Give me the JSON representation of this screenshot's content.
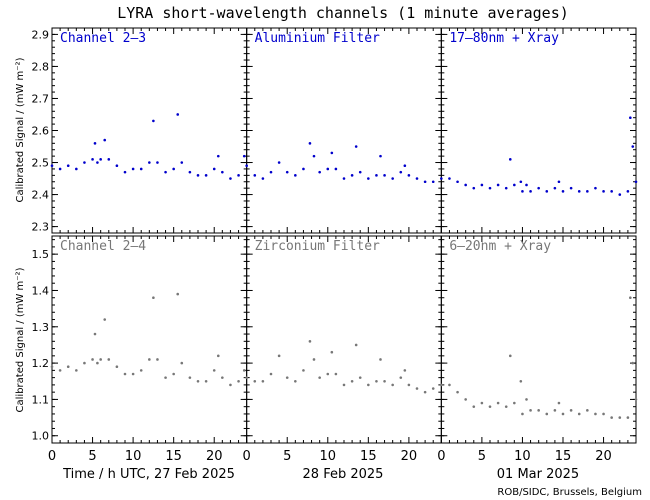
{
  "title": "LYRA short-wavelength channels (1 minute averages)",
  "credit": "ROB/SIDC, Brussels, Belgium",
  "ylabel": "Calibrated Signal / (mW m⁻²)",
  "x_tick_labels": [
    "0",
    "5",
    "10",
    "15",
    "20"
  ],
  "day_labels": [
    "Time / h UTC, 27 Feb 2025",
    "28 Feb 2025",
    "01 Mar 2025"
  ],
  "colors": {
    "top": "#0000cc",
    "bottom": "#777777",
    "axes": "#000000"
  },
  "chart_data": [
    {
      "type": "scatter",
      "row": "top",
      "ylim": [
        2.28,
        2.92
      ],
      "yticks": [
        "2.3",
        "2.4",
        "2.5",
        "2.6",
        "2.7",
        "2.8",
        "2.9"
      ],
      "xlim_hours": [
        0,
        72
      ],
      "panels": [
        "Channel 2–3",
        "Aluminium Filter",
        "17–80nm + Xray"
      ],
      "series": [
        {
          "points": [
            [
              0,
              2.49
            ],
            [
              1,
              2.48
            ],
            [
              2,
              2.49
            ],
            [
              3,
              2.48
            ],
            [
              4,
              2.5
            ],
            [
              5,
              2.51
            ],
            [
              5.3,
              2.56
            ],
            [
              5.6,
              2.5
            ],
            [
              6,
              2.51
            ],
            [
              6.5,
              2.57
            ],
            [
              7,
              2.51
            ],
            [
              8,
              2.49
            ],
            [
              9,
              2.47
            ],
            [
              10,
              2.48
            ],
            [
              11,
              2.48
            ],
            [
              12,
              2.5
            ],
            [
              12.5,
              2.63
            ],
            [
              13,
              2.5
            ],
            [
              14,
              2.47
            ],
            [
              15,
              2.48
            ],
            [
              15.5,
              2.65
            ],
            [
              16,
              2.5
            ],
            [
              17,
              2.47
            ],
            [
              18,
              2.46
            ],
            [
              19,
              2.46
            ],
            [
              20,
              2.48
            ],
            [
              20.5,
              2.52
            ],
            [
              21,
              2.47
            ],
            [
              22,
              2.45
            ],
            [
              23,
              2.46
            ],
            [
              23.7,
              2.52
            ],
            [
              24,
              2.49
            ],
            [
              25,
              2.46
            ],
            [
              26,
              2.45
            ],
            [
              27,
              2.47
            ],
            [
              28,
              2.5
            ],
            [
              29,
              2.47
            ],
            [
              30,
              2.46
            ],
            [
              31,
              2.48
            ],
            [
              31.8,
              2.56
            ],
            [
              32.3,
              2.52
            ],
            [
              33,
              2.47
            ],
            [
              34,
              2.48
            ],
            [
              34.5,
              2.53
            ],
            [
              35,
              2.48
            ],
            [
              36,
              2.45
            ],
            [
              37,
              2.46
            ],
            [
              37.5,
              2.55
            ],
            [
              38,
              2.47
            ],
            [
              39,
              2.45
            ],
            [
              40,
              2.46
            ],
            [
              40.5,
              2.52
            ],
            [
              41,
              2.46
            ],
            [
              42,
              2.45
            ],
            [
              43,
              2.47
            ],
            [
              43.5,
              2.49
            ],
            [
              44,
              2.46
            ],
            [
              45,
              2.45
            ],
            [
              46,
              2.44
            ],
            [
              47,
              2.44
            ],
            [
              48,
              2.45
            ],
            [
              49,
              2.45
            ],
            [
              50,
              2.44
            ],
            [
              51,
              2.43
            ],
            [
              52,
              2.42
            ],
            [
              53,
              2.43
            ],
            [
              54,
              2.42
            ],
            [
              55,
              2.43
            ],
            [
              56,
              2.42
            ],
            [
              56.5,
              2.51
            ],
            [
              57,
              2.43
            ],
            [
              57.8,
              2.44
            ],
            [
              58,
              2.41
            ],
            [
              58.5,
              2.43
            ],
            [
              59,
              2.41
            ],
            [
              60,
              2.42
            ],
            [
              61,
              2.41
            ],
            [
              62,
              2.42
            ],
            [
              62.5,
              2.44
            ],
            [
              63,
              2.41
            ],
            [
              64,
              2.42
            ],
            [
              65,
              2.41
            ],
            [
              66,
              2.41
            ],
            [
              67,
              2.42
            ],
            [
              68,
              2.41
            ],
            [
              69,
              2.41
            ],
            [
              70,
              2.4
            ],
            [
              71,
              2.41
            ],
            [
              71.3,
              2.64
            ],
            [
              71.6,
              2.55
            ],
            [
              72,
              2.44
            ]
          ]
        }
      ]
    },
    {
      "type": "scatter",
      "row": "bottom",
      "ylim": [
        0.98,
        1.55
      ],
      "yticks": [
        "1.0",
        "1.1",
        "1.2",
        "1.3",
        "1.4",
        "1.5"
      ],
      "xlim_hours": [
        0,
        72
      ],
      "panels": [
        "Channel 2–4",
        "Zirconium Filter",
        "6–20nm + Xray"
      ],
      "series": [
        {
          "points": [
            [
              0,
              1.19
            ],
            [
              1,
              1.18
            ],
            [
              2,
              1.19
            ],
            [
              3,
              1.18
            ],
            [
              4,
              1.2
            ],
            [
              5,
              1.21
            ],
            [
              5.3,
              1.28
            ],
            [
              5.6,
              1.2
            ],
            [
              6,
              1.21
            ],
            [
              6.5,
              1.32
            ],
            [
              7,
              1.21
            ],
            [
              8,
              1.19
            ],
            [
              9,
              1.17
            ],
            [
              10,
              1.17
            ],
            [
              11,
              1.18
            ],
            [
              12,
              1.21
            ],
            [
              12.5,
              1.38
            ],
            [
              13,
              1.21
            ],
            [
              14,
              1.16
            ],
            [
              15,
              1.17
            ],
            [
              15.5,
              1.39
            ],
            [
              16,
              1.2
            ],
            [
              17,
              1.16
            ],
            [
              18,
              1.15
            ],
            [
              19,
              1.15
            ],
            [
              20,
              1.18
            ],
            [
              20.5,
              1.22
            ],
            [
              21,
              1.16
            ],
            [
              22,
              1.14
            ],
            [
              23,
              1.15
            ],
            [
              23.7,
              1.18
            ],
            [
              24,
              1.16
            ],
            [
              25,
              1.15
            ],
            [
              26,
              1.15
            ],
            [
              27,
              1.17
            ],
            [
              28,
              1.22
            ],
            [
              29,
              1.16
            ],
            [
              30,
              1.15
            ],
            [
              31,
              1.18
            ],
            [
              31.8,
              1.26
            ],
            [
              32.3,
              1.21
            ],
            [
              33,
              1.16
            ],
            [
              34,
              1.17
            ],
            [
              34.5,
              1.23
            ],
            [
              35,
              1.17
            ],
            [
              36,
              1.14
            ],
            [
              37,
              1.15
            ],
            [
              37.5,
              1.25
            ],
            [
              38,
              1.16
            ],
            [
              39,
              1.14
            ],
            [
              40,
              1.15
            ],
            [
              40.5,
              1.21
            ],
            [
              41,
              1.15
            ],
            [
              42,
              1.14
            ],
            [
              43,
              1.16
            ],
            [
              43.5,
              1.18
            ],
            [
              44,
              1.14
            ],
            [
              45,
              1.13
            ],
            [
              46,
              1.12
            ],
            [
              47,
              1.13
            ],
            [
              48,
              1.14
            ],
            [
              49,
              1.14
            ],
            [
              50,
              1.12
            ],
            [
              51,
              1.1
            ],
            [
              52,
              1.08
            ],
            [
              53,
              1.09
            ],
            [
              54,
              1.08
            ],
            [
              55,
              1.09
            ],
            [
              56,
              1.08
            ],
            [
              56.5,
              1.22
            ],
            [
              57,
              1.09
            ],
            [
              57.8,
              1.15
            ],
            [
              58,
              1.06
            ],
            [
              58.5,
              1.1
            ],
            [
              59,
              1.07
            ],
            [
              60,
              1.07
            ],
            [
              61,
              1.06
            ],
            [
              62,
              1.07
            ],
            [
              62.5,
              1.09
            ],
            [
              63,
              1.06
            ],
            [
              64,
              1.07
            ],
            [
              65,
              1.06
            ],
            [
              66,
              1.07
            ],
            [
              67,
              1.06
            ],
            [
              68,
              1.06
            ],
            [
              69,
              1.05
            ],
            [
              70,
              1.05
            ],
            [
              71,
              1.05
            ],
            [
              71.3,
              1.38
            ],
            [
              71.6,
              1.2
            ],
            [
              72,
              1.1
            ]
          ]
        }
      ]
    }
  ]
}
